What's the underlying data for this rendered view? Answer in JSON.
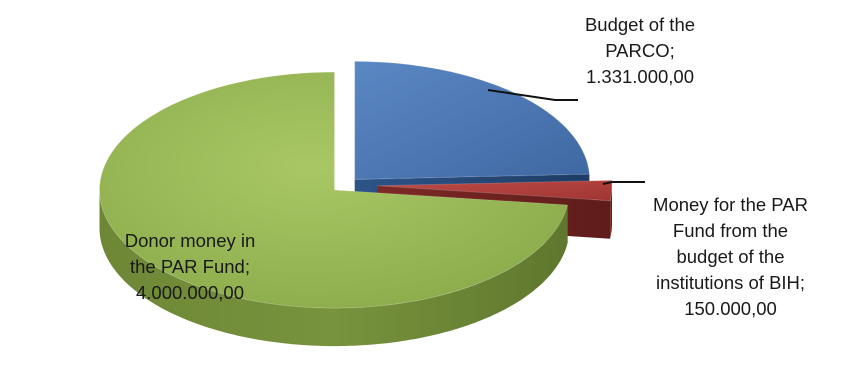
{
  "chart_data": {
    "type": "pie",
    "style": "3d-exploded",
    "title": "",
    "slices": [
      {
        "name": "Budget of the PARCO",
        "value": 1331000,
        "display_value": "1.331.000,00",
        "label_lines": [
          "Budget of the",
          "PARCO;",
          "1.331.000,00"
        ],
        "color": "#4a76b3"
      },
      {
        "name": "Money for the PAR Fund from the budget of the institutions of BIH",
        "value": 150000,
        "display_value": "150.000,00",
        "label_lines": [
          "Money for the PAR",
          "Fund from the",
          "budget of the",
          "institutions of BIH;",
          "150.000,00"
        ],
        "color": "#b3413d"
      },
      {
        "name": "Donor money in the PAR Fund",
        "value": 4000000,
        "display_value": "4.000.000,00",
        "label_lines": [
          "Donor money in",
          "the PAR Fund;",
          "4.000.000,00"
        ],
        "color": "#9bba58"
      }
    ],
    "legend": "none"
  }
}
